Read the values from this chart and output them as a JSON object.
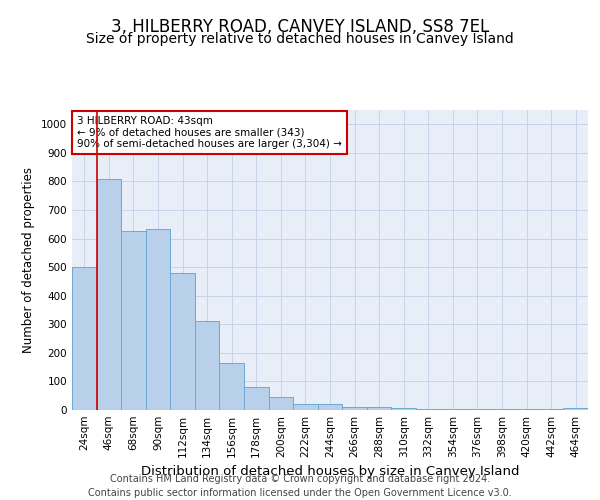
{
  "title": "3, HILBERRY ROAD, CANVEY ISLAND, SS8 7EL",
  "subtitle": "Size of property relative to detached houses in Canvey Island",
  "xlabel": "Distribution of detached houses by size in Canvey Island",
  "ylabel": "Number of detached properties",
  "categories": [
    "24sqm",
    "46sqm",
    "68sqm",
    "90sqm",
    "112sqm",
    "134sqm",
    "156sqm",
    "178sqm",
    "200sqm",
    "222sqm",
    "244sqm",
    "266sqm",
    "288sqm",
    "310sqm",
    "332sqm",
    "354sqm",
    "376sqm",
    "398sqm",
    "420sqm",
    "442sqm",
    "464sqm"
  ],
  "values": [
    500,
    810,
    625,
    635,
    480,
    310,
    165,
    82,
    45,
    22,
    22,
    12,
    10,
    8,
    5,
    5,
    3,
    5,
    2,
    2,
    8
  ],
  "bar_color": "#b8d0ea",
  "bar_edge_color": "#6aaad4",
  "vline_color": "#cc0000",
  "annotation_text": "3 HILBERRY ROAD: 43sqm\n← 9% of detached houses are smaller (343)\n90% of semi-detached houses are larger (3,304) →",
  "annotation_box_color": "#ffffff",
  "annotation_box_edge_color": "#cc0000",
  "ylim": [
    0,
    1050
  ],
  "yticks": [
    0,
    100,
    200,
    300,
    400,
    500,
    600,
    700,
    800,
    900,
    1000
  ],
  "grid_color": "#c8d4e8",
  "background_color": "#e8eef8",
  "footer_line1": "Contains HM Land Registry data © Crown copyright and database right 2024.",
  "footer_line2": "Contains public sector information licensed under the Open Government Licence v3.0.",
  "title_fontsize": 12,
  "subtitle_fontsize": 10,
  "xlabel_fontsize": 9.5,
  "ylabel_fontsize": 8.5,
  "tick_fontsize": 7.5,
  "footer_fontsize": 7,
  "annot_fontsize": 7.5
}
